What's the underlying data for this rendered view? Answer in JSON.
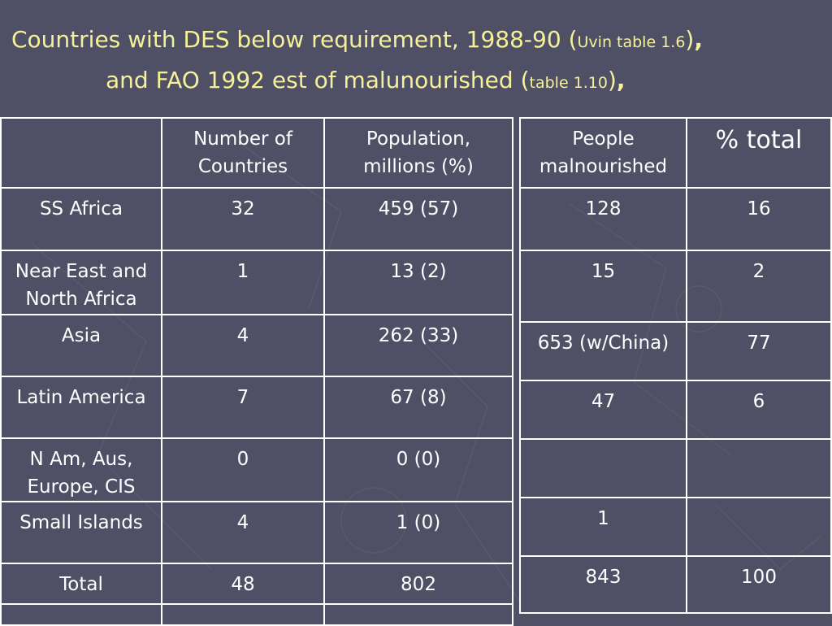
{
  "title": {
    "line1_main": "Countries with DES below requirement, 1988-90",
    "line1_paren_open": "(",
    "line1_ref": "Uvin table 1.6",
    "line1_paren_close": ")",
    "line1_comma": ",",
    "line2_main": "and FAO 1992 est of malunourished",
    "line2_paren_open": "(",
    "line2_ref": "table 1.10",
    "line2_paren_close": ")",
    "line2_comma": ","
  },
  "left_table": {
    "headers": [
      "",
      "Number of Countries",
      "Population, millions (%)"
    ],
    "rows": [
      {
        "region": "SS Africa",
        "countries": "32",
        "population": "459 (57)"
      },
      {
        "region": "Near East and North Africa",
        "countries": "1",
        "population": "13 (2)"
      },
      {
        "region": "Asia",
        "countries": "4",
        "population": "262 (33)"
      },
      {
        "region": "Latin America",
        "countries": "7",
        "population": "67 (8)"
      },
      {
        "region": "N Am, Aus, Europe, CIS",
        "countries": "0",
        "population": "0 (0)"
      },
      {
        "region": "Small Islands",
        "countries": "4",
        "population": "1 (0)"
      },
      {
        "region": "Total",
        "countries": "48",
        "population": "802"
      },
      {
        "region": "",
        "countries": "",
        "population": ""
      }
    ]
  },
  "right_table": {
    "headers": [
      "People malnourished",
      "% total"
    ],
    "rows": [
      {
        "people": "128",
        "pct": "16"
      },
      {
        "people": "15",
        "pct": "2"
      },
      {
        "people": "653 (w/China)",
        "pct": "77"
      },
      {
        "people": "47",
        "pct": "6"
      },
      {
        "people": "",
        "pct": ""
      },
      {
        "people": "1",
        "pct": ""
      },
      {
        "people": "843",
        "pct": "100"
      }
    ]
  },
  "colors": {
    "background": "#4f5065",
    "title_text": "#f5f09a",
    "table_text": "#ffffff",
    "grid_lines": "#ffffff"
  }
}
